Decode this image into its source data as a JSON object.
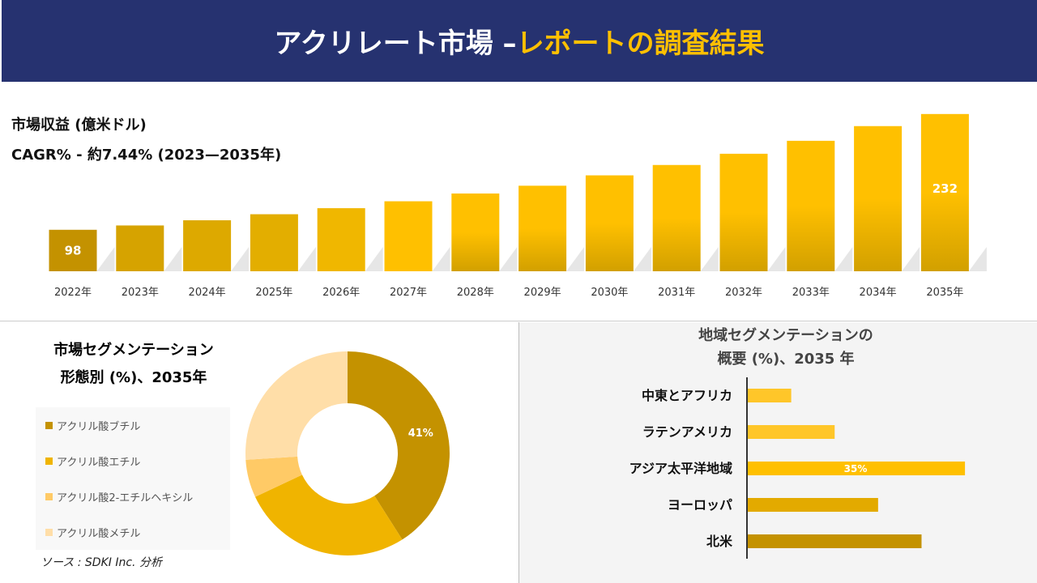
{
  "header": {
    "title_main": "アクリレート市場 –",
    "title_accent": "レポートの調査結果"
  },
  "colors": {
    "header_bg": "#263270",
    "accent": "#FFC000"
  },
  "revenue": {
    "label": "市場収益 (億米ドル)",
    "cagr": "CAGR% - 約7.44% (2023—2035年)"
  },
  "segment": {
    "title_line1": "市場セグメンテーション",
    "title_line2": "形態別 (%)、2035年"
  },
  "region": {
    "title_line1": "地域セグメンテーションの",
    "title_line2": "概要 (%)、2035 年"
  },
  "source": "ソース : SDKI Inc. 分析",
  "chart_data": [
    {
      "type": "bar",
      "categories": [
        "2022年",
        "2023年",
        "2024年",
        "2025年",
        "2026年",
        "2027年",
        "2028年",
        "2029年",
        "2030年",
        "2031年",
        "2032年",
        "2033年",
        "2034年",
        "2035年"
      ],
      "values": [
        98,
        103,
        109,
        116,
        123,
        131,
        140,
        149,
        161,
        173,
        186,
        201,
        218,
        232
      ],
      "data_labels": {
        "0": "98",
        "13": "232"
      },
      "colors": [
        "#C49200",
        "#D6A300",
        "#DDA900",
        "#E3AE00",
        "#F0B700",
        "#FFC000",
        "#FFC000",
        "#FFC000",
        "#FFC000",
        "#FFC000",
        "#FFC000",
        "#FFC000",
        "#FFC000",
        "#FFC000"
      ],
      "ylabel": "市場収益 (億米ドル)"
    },
    {
      "type": "pie",
      "donut": true,
      "labels": [
        "アクリル酸ブチル",
        "アクリル酸エチル",
        "アクリル酸2-エチルヘキシル",
        "アクリル酸メチル"
      ],
      "values": [
        41,
        27,
        6,
        26
      ],
      "data_labels": {
        "0": "41%"
      },
      "colors": [
        "#C49200",
        "#F0B400",
        "#FFCA66",
        "#FFDEA8"
      ],
      "legend": "left"
    },
    {
      "type": "bar",
      "orientation": "horizontal",
      "categories": [
        "中東とアフリカ",
        "ラテンアメリカ",
        "アジア太平洋地域",
        "ヨーロッパ",
        "北米"
      ],
      "values": [
        7,
        14,
        35,
        21,
        28
      ],
      "data_labels": {
        "2": "35%"
      },
      "colors": [
        "#FFC629",
        "#FFC629",
        "#FFC000",
        "#E3AA00",
        "#C49200"
      ]
    }
  ]
}
